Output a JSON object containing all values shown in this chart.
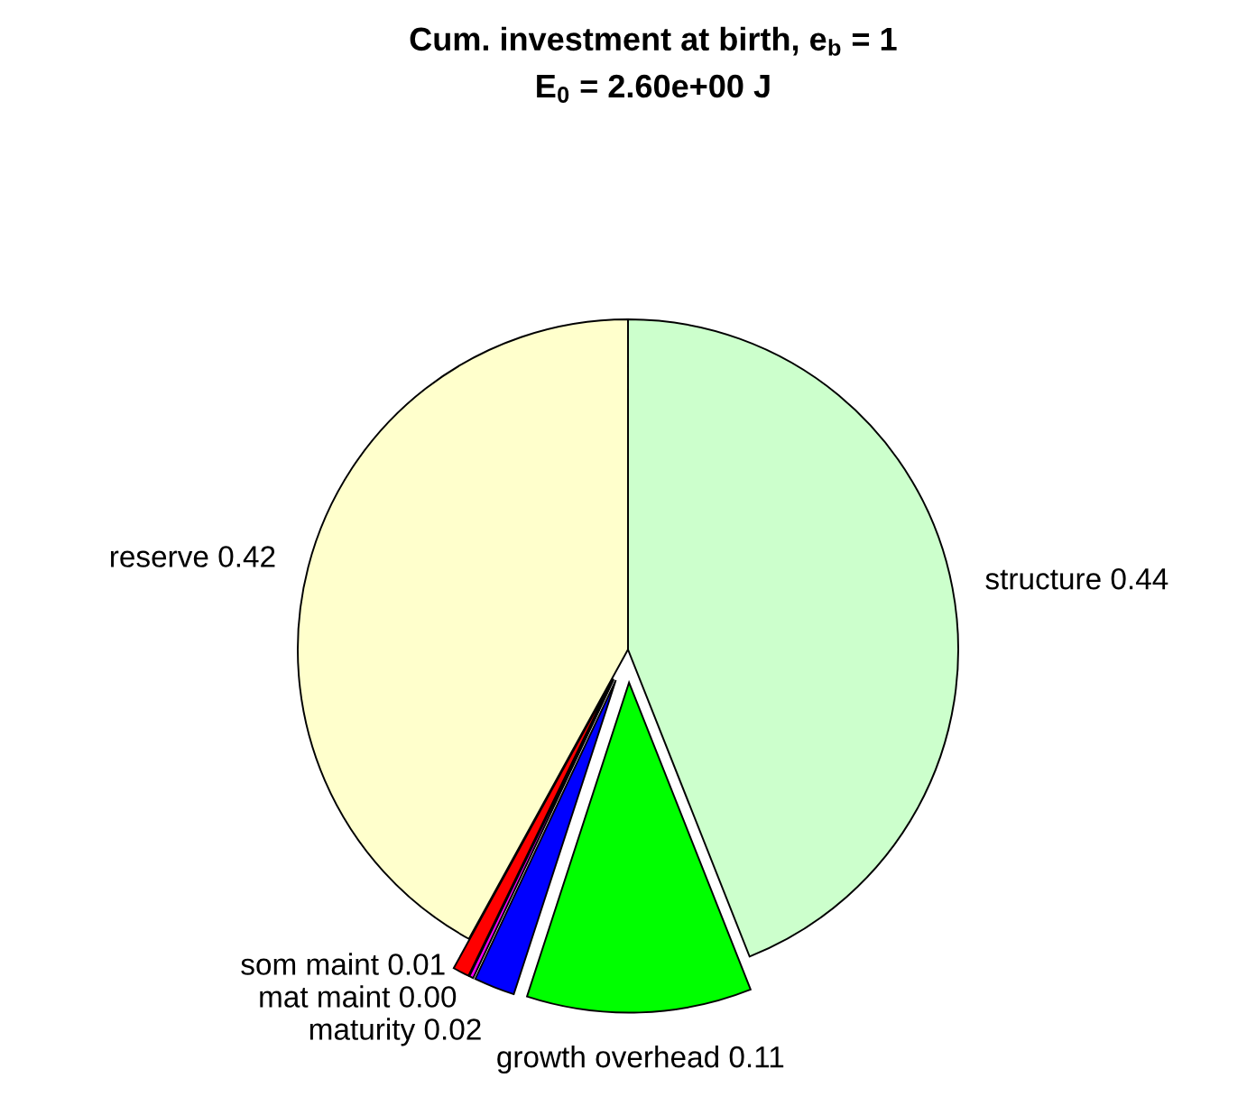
{
  "chart_data": {
    "type": "pie",
    "title": "Cum. investment at birth, e$_{b}$ = 1",
    "subtitle": "E$_{0}$ = 2.60e+00 J",
    "categories": [
      "structure",
      "growth overhead",
      "maturity",
      "mat maint",
      "som maint",
      "reserve"
    ],
    "values": [
      0.44,
      0.11,
      0.02,
      0.002,
      0.008,
      0.42
    ],
    "value_labels": [
      "0.44",
      "0.11",
      "0.02",
      "0.00",
      "0.01",
      "0.42"
    ],
    "colors": [
      "#ccffcc",
      "#00ff00",
      "#0000ff",
      "#ff00ff",
      "#ff0000",
      "#ffffcc"
    ]
  }
}
